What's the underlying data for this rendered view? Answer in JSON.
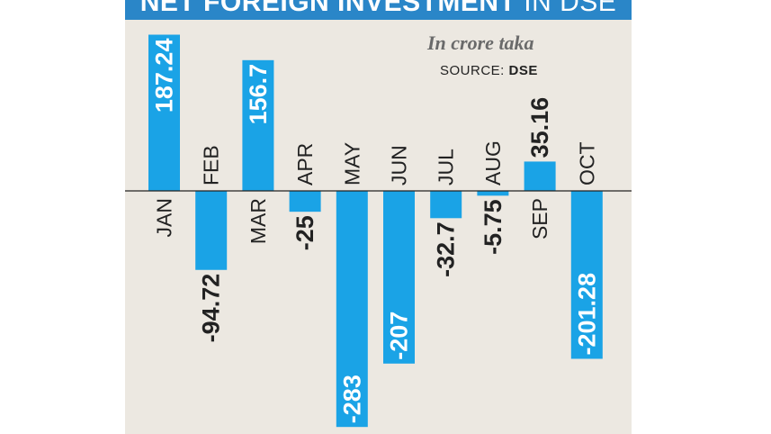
{
  "title": {
    "main": "NET FOREIGN INVESTMENT",
    "rest": "IN DSE"
  },
  "subtitle": "In crore taka",
  "source": {
    "label": "SOURCE:",
    "name": "DSE"
  },
  "colors": {
    "bar": "#1aa3e6",
    "panel": "#ece8e1",
    "title_band": "#2a86c8",
    "text": "#222222"
  },
  "chart_data": {
    "type": "bar",
    "title": "NET FOREIGN INVESTMENT IN DSE",
    "subtitle": "In crore taka",
    "categories": [
      "JAN",
      "FEB",
      "MAR",
      "APR",
      "MAY",
      "JUN",
      "JUL",
      "AUG",
      "SEP",
      "OCT"
    ],
    "values": [
      187.24,
      -94.72,
      156.7,
      -25,
      -283,
      -207,
      -32.7,
      -5.75,
      35.16,
      -201.28
    ],
    "value_labels": [
      "187.24",
      "-94.72",
      "156.7",
      "-25",
      "-283",
      "-207",
      "-32.7",
      "-5.75",
      "35.16",
      "-201.28"
    ],
    "xlabel": "",
    "ylabel": "",
    "grid": false,
    "legend": "none"
  }
}
